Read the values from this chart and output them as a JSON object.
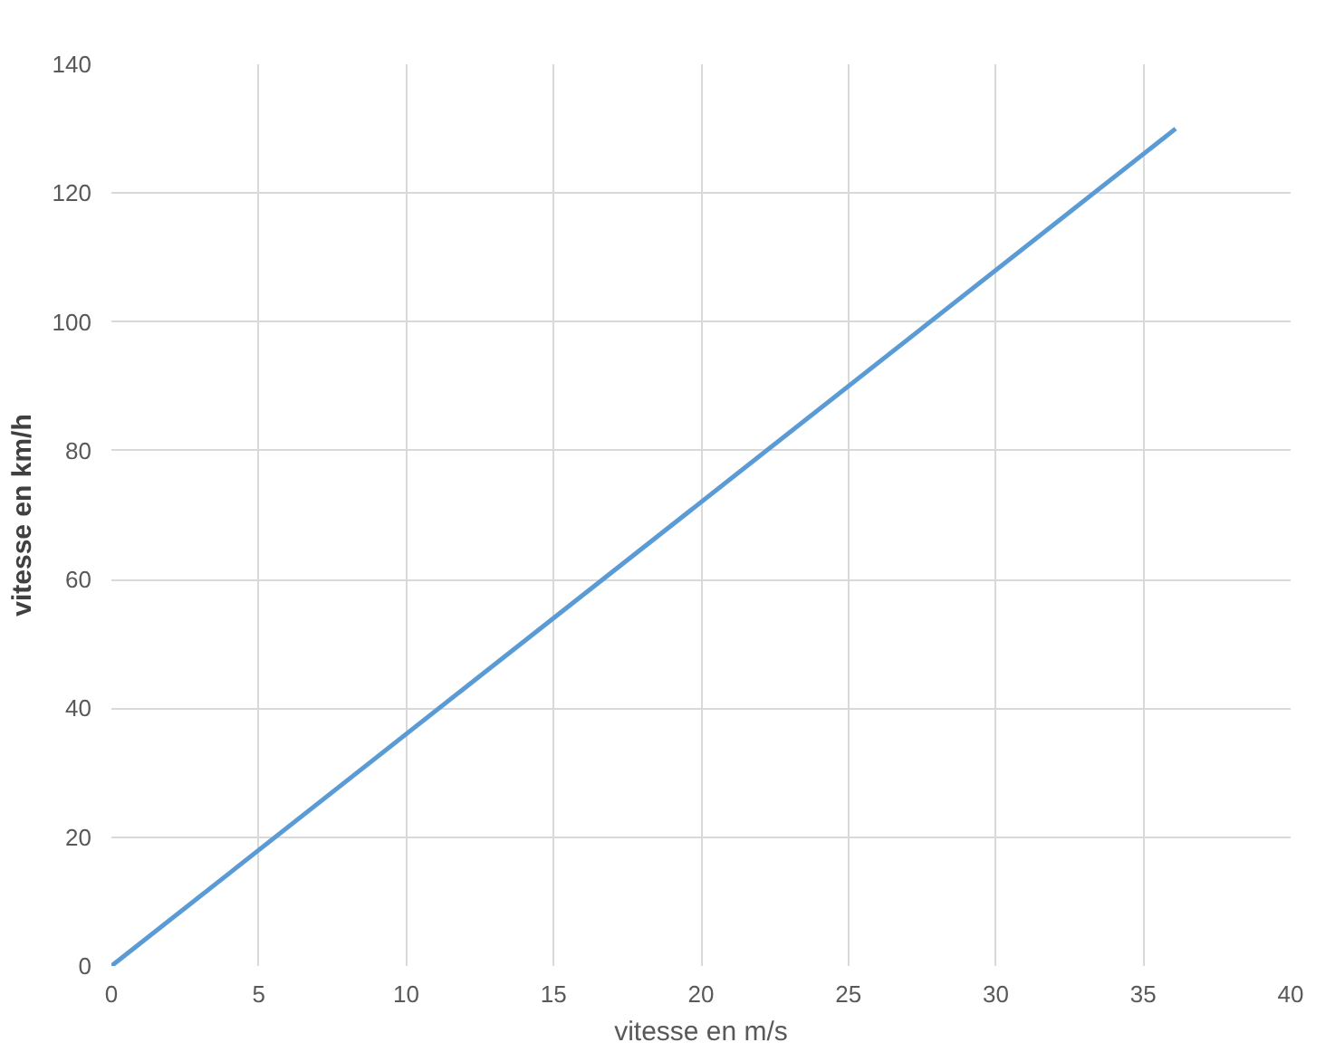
{
  "chart_data": {
    "type": "line",
    "xlabel": "vitesse en m/s",
    "ylabel": "vitesse en km/h",
    "x": [
      0,
      36.1
    ],
    "series": [
      {
        "color": "#5b9bd5",
        "values": [
          0,
          130
        ]
      }
    ],
    "xlim": [
      0,
      40
    ],
    "xticks": [
      0,
      5,
      10,
      15,
      20,
      25,
      30,
      35,
      40
    ],
    "ylim": [
      0,
      140
    ],
    "yticks": [
      0,
      20,
      40,
      60,
      80,
      100,
      120,
      140
    ],
    "grid": true,
    "marker": "none",
    "line_style": "solid"
  }
}
